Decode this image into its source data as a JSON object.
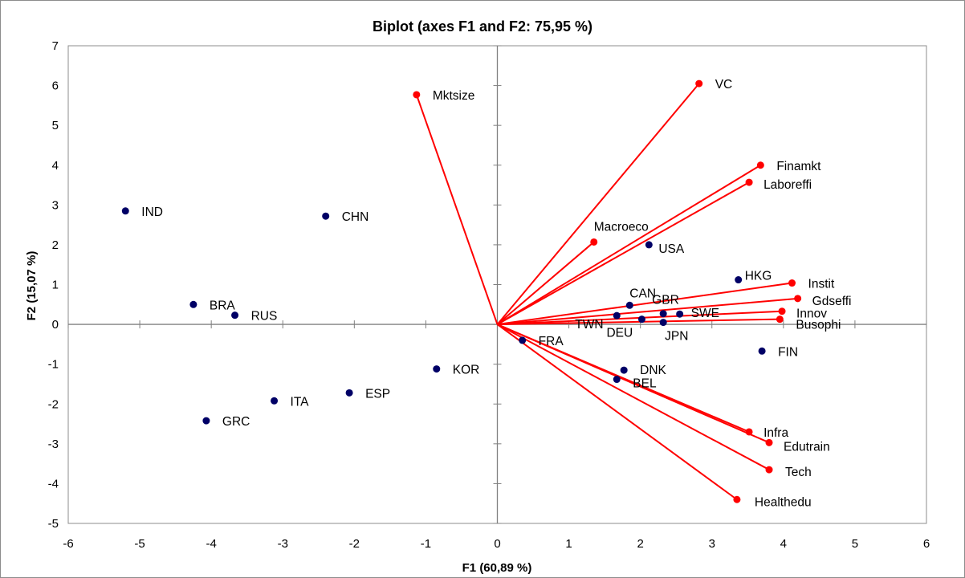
{
  "chart_data": {
    "type": "scatter",
    "title": "Biplot (axes F1 and F2: 75,95 %)",
    "xlabel": "F1 (60,89 %)",
    "ylabel": "F2 (15,07 %)",
    "xlim": [
      -6,
      6
    ],
    "ylim": [
      -5,
      7
    ],
    "x_ticks": [
      -6,
      -5,
      -4,
      -3,
      -2,
      -1,
      0,
      1,
      2,
      3,
      4,
      5,
      6
    ],
    "y_ticks": [
      -5,
      -4,
      -3,
      -2,
      -1,
      0,
      1,
      2,
      3,
      4,
      5,
      6,
      7
    ],
    "grid": false,
    "colors": {
      "observations": "#000066",
      "variables": "#ff0000",
      "vectors": "#ff0000"
    },
    "observations": [
      {
        "label": "IND",
        "x": -5.2,
        "y": 2.85
      },
      {
        "label": "CHN",
        "x": -2.4,
        "y": 2.72
      },
      {
        "label": "BRA",
        "x": -4.25,
        "y": 0.5
      },
      {
        "label": "RUS",
        "x": -3.67,
        "y": 0.23
      },
      {
        "label": "KOR",
        "x": -0.85,
        "y": -1.12
      },
      {
        "label": "ESP",
        "x": -2.07,
        "y": -1.72
      },
      {
        "label": "ITA",
        "x": -3.12,
        "y": -1.92
      },
      {
        "label": "GRC",
        "x": -4.07,
        "y": -2.42
      },
      {
        "label": "FRA",
        "x": 0.35,
        "y": -0.4
      },
      {
        "label": "TWN",
        "x": 1.67,
        "y": 0.22
      },
      {
        "label": "DEU",
        "x": 2.02,
        "y": 0.13
      },
      {
        "label": "CAN",
        "x": 1.85,
        "y": 0.48
      },
      {
        "label": "GBR",
        "x": 2.32,
        "y": 0.27
      },
      {
        "label": "SWE",
        "x": 2.55,
        "y": 0.26
      },
      {
        "label": "JPN",
        "x": 2.32,
        "y": 0.05
      },
      {
        "label": "USA",
        "x": 2.12,
        "y": 2.0
      },
      {
        "label": "HKG",
        "x": 3.37,
        "y": 1.12
      },
      {
        "label": "FIN",
        "x": 3.7,
        "y": -0.67
      },
      {
        "label": "DNK",
        "x": 1.77,
        "y": -1.15
      },
      {
        "label": "BEL",
        "x": 1.67,
        "y": -1.38
      }
    ],
    "variables": [
      {
        "label": "Mktsize",
        "x": -1.13,
        "y": 5.77
      },
      {
        "label": "VC",
        "x": 2.82,
        "y": 6.05
      },
      {
        "label": "Finamkt",
        "x": 3.68,
        "y": 4.0
      },
      {
        "label": "Laboreffi",
        "x": 3.52,
        "y": 3.57
      },
      {
        "label": "Macroeco",
        "x": 1.35,
        "y": 2.07
      },
      {
        "label": "Instit",
        "x": 4.12,
        "y": 1.04
      },
      {
        "label": "Gdseffi",
        "x": 4.2,
        "y": 0.65
      },
      {
        "label": "Innov",
        "x": 3.98,
        "y": 0.33
      },
      {
        "label": "Busophi",
        "x": 3.95,
        "y": 0.13
      },
      {
        "label": "Infra",
        "x": 3.52,
        "y": -2.7
      },
      {
        "label": "Edutrain",
        "x": 3.8,
        "y": -2.97
      },
      {
        "label": "Tech",
        "x": 3.8,
        "y": -3.65
      },
      {
        "label": "Healthedu",
        "x": 3.35,
        "y": -4.4
      }
    ]
  }
}
